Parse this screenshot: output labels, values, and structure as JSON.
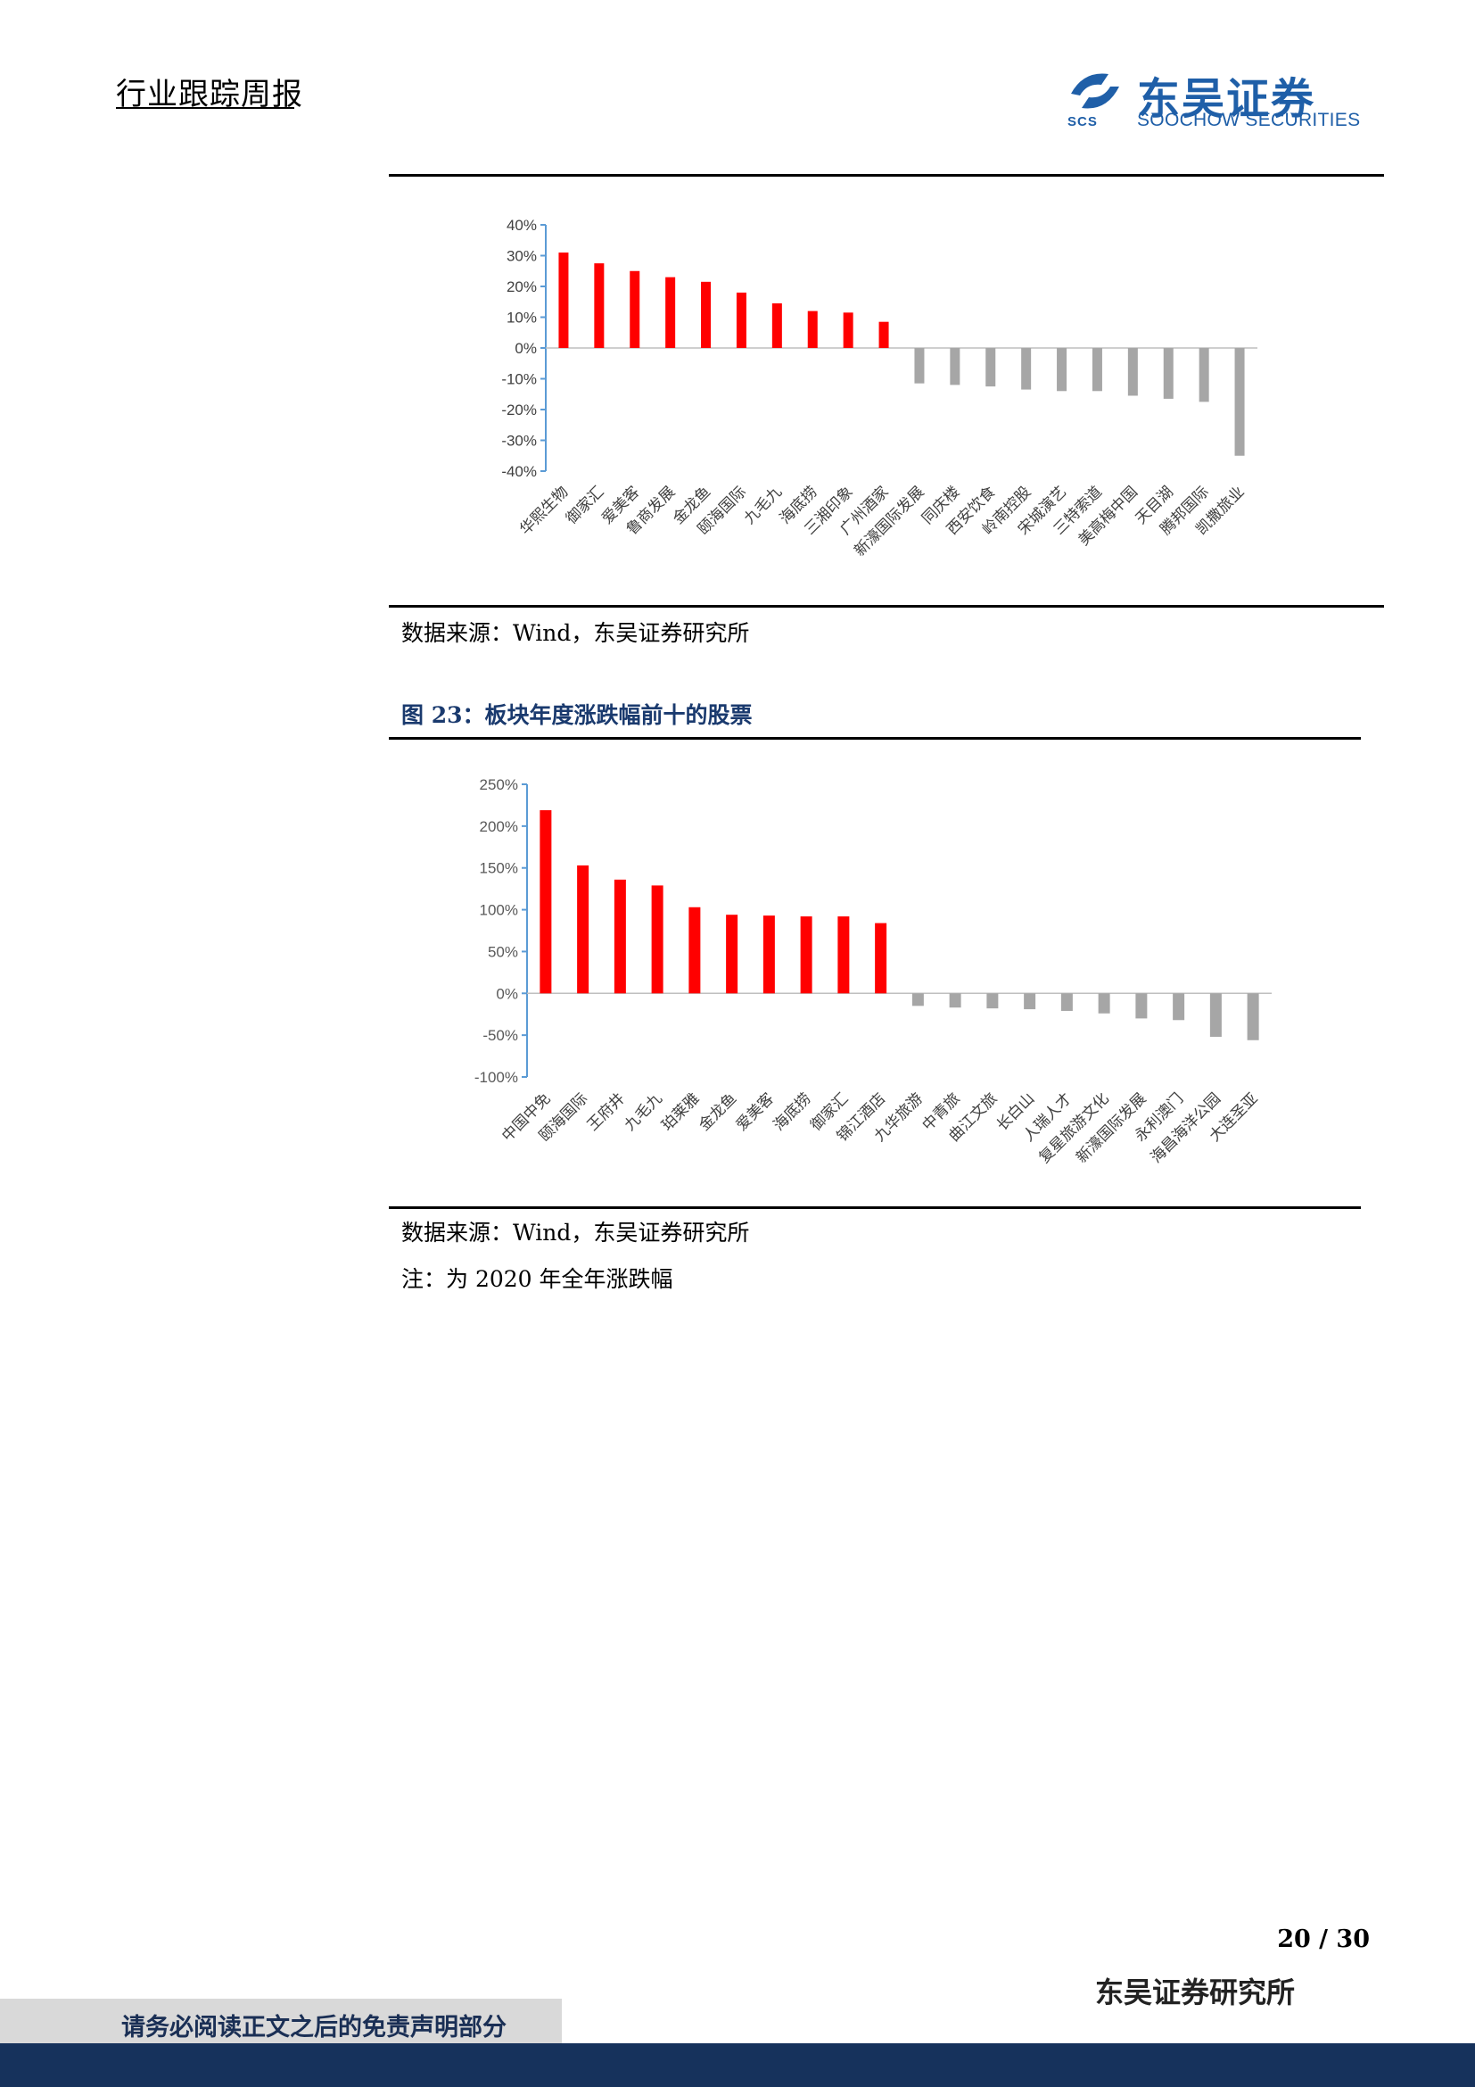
{
  "header": {
    "title": "行业跟踪周报"
  },
  "logo": {
    "cn": "东吴证券",
    "en": "SOOCHOW SECURITIES",
    "mark": "SCS",
    "color": "#1f5fa8"
  },
  "colors": {
    "positive": "#ff0000",
    "negative": "#a6a6a6",
    "axis": "#5b9bd5"
  },
  "source1": "数据来源：Wind，东吴证券研究所",
  "figure2_title": "图 23：板块年度涨跌幅前十的股票",
  "source2": "数据来源：Wind，东吴证券研究所",
  "note2": "注：为 2020 年全年涨跌幅",
  "page_number": "20 / 30",
  "institute": "东吴证券研究所",
  "disclaimer": "请务必阅读正文之后的免责声明部分",
  "chart_data": [
    {
      "type": "bar",
      "title": "",
      "categories": [
        "华熙生物",
        "御家汇",
        "爱美客",
        "鲁商发展",
        "金龙鱼",
        "颐海国际",
        "九毛九",
        "海底捞",
        "三湘印象",
        "广州酒家",
        "新濠国际发展",
        "同庆楼",
        "西安饮食",
        "岭南控股",
        "宋城演艺",
        "三特索道",
        "美高梅中国",
        "天目湖",
        "腾邦国际",
        "凯撒旅业"
      ],
      "values": [
        31,
        27.5,
        25,
        23,
        21.5,
        18,
        14.5,
        12,
        11.5,
        8.5,
        -11.5,
        -12,
        -12.5,
        -13.5,
        -14,
        -14,
        -15.5,
        -16.5,
        -17.5,
        -35
      ],
      "ylim": [
        -40,
        40
      ],
      "yticks": [
        40,
        30,
        20,
        10,
        0,
        -10,
        -20,
        -30,
        -40
      ],
      "ytick_labels": [
        "40%",
        "30%",
        "20%",
        "10%",
        "0%",
        "-10%",
        "-20%",
        "-30%",
        "-40%"
      ],
      "xlabel": "",
      "ylabel": ""
    },
    {
      "type": "bar",
      "title": "图 23：板块年度涨跌幅前十的股票",
      "categories": [
        "中国中免",
        "颐海国际",
        "王府井",
        "九毛九",
        "珀莱雅",
        "金龙鱼",
        "爱美客",
        "海底捞",
        "御家汇",
        "锦江酒店",
        "九华旅游",
        "中青旅",
        "曲江文旅",
        "长白山",
        "人瑞人才",
        "复星旅游文化",
        "新濠国际发展",
        "永利澳门",
        "海昌海洋公园",
        "大连圣亚"
      ],
      "values": [
        219,
        153,
        136,
        129,
        103,
        94,
        93,
        92,
        92,
        84,
        -15,
        -17,
        -18,
        -19,
        -21,
        -24,
        -30,
        -32,
        -52,
        -56
      ],
      "ylim": [
        -100,
        250
      ],
      "yticks": [
        250,
        200,
        150,
        100,
        50,
        0,
        -50,
        -100
      ],
      "ytick_labels": [
        "250%",
        "200%",
        "150%",
        "100%",
        "50%",
        "0%",
        "-50%",
        "-100%"
      ],
      "xlabel": "",
      "ylabel": ""
    }
  ]
}
